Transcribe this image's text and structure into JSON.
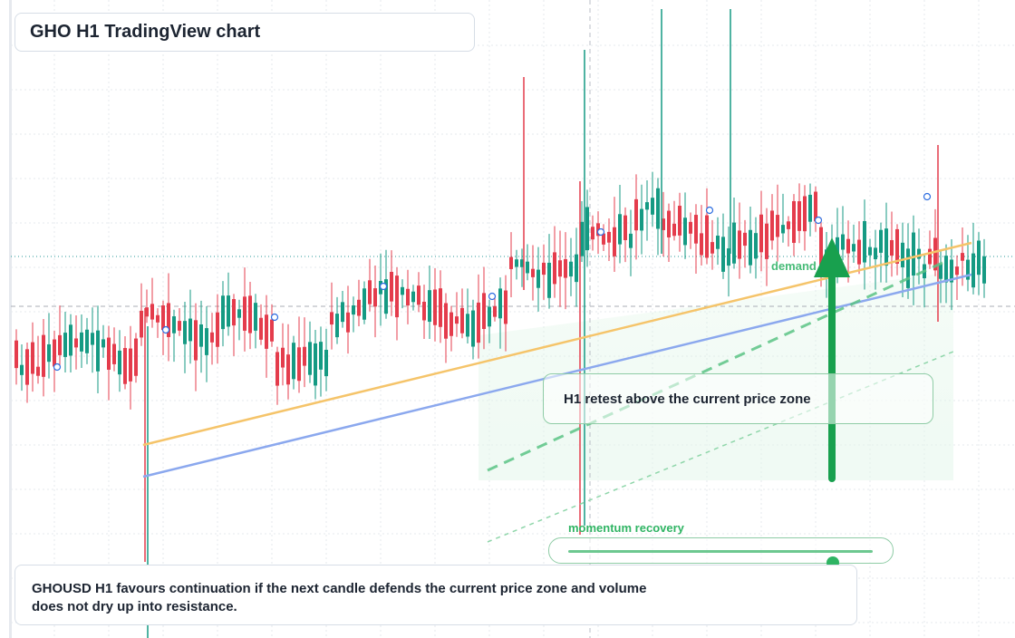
{
  "header": {
    "title": "GHO H1 TradingView chart"
  },
  "callout": {
    "text": "H1 retest above the current price zone"
  },
  "labels": {
    "demand": "demand",
    "momentum": "momentum recovery"
  },
  "momentum_slider": {
    "value": 0.87
  },
  "caption": {
    "text": "GHOUSD H1 favours continuation if the next candle defends the current price zone and volume does not dry up into resistance."
  },
  "colors": {
    "up": "#159a83",
    "down": "#e43c4c",
    "accent_green": "#2fb463",
    "trend_orange": "#f5c46a",
    "trend_blue": "#8ba8ee"
  },
  "icons": {
    "arrow": "arrow-up-icon"
  }
}
